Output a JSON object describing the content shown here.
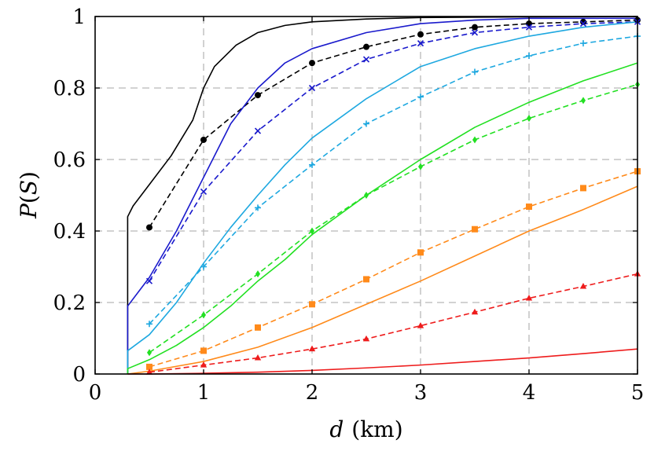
{
  "chart_data": {
    "type": "line",
    "xlabel": "d (km)",
    "xlabel_parts": {
      "var": "d",
      "unit": "(km)"
    },
    "ylabel": "P(S)",
    "ylabel_parts": {
      "p": "P",
      "open": "(",
      "s": "S",
      "close": ")"
    },
    "xlim": [
      0,
      5
    ],
    "ylim": [
      0,
      1
    ],
    "x_ticks": [
      "0",
      "1",
      "2",
      "3",
      "4",
      "5"
    ],
    "y_ticks": [
      "0",
      "0.2",
      "0.4",
      "0.6",
      "0.8",
      "1"
    ],
    "grid": true,
    "series": [
      {
        "color": "#000000",
        "style": "solid",
        "marker": "none",
        "x": [
          0.3,
          0.3,
          0.35,
          0.5,
          0.7,
          0.9,
          1.0,
          1.1,
          1.3,
          1.5,
          1.75,
          2.0,
          2.5,
          3.0,
          4.0,
          5.0
        ],
        "y": [
          0.0,
          0.44,
          0.47,
          0.53,
          0.61,
          0.71,
          0.8,
          0.86,
          0.92,
          0.955,
          0.975,
          0.985,
          0.993,
          0.997,
          0.999,
          1.0
        ]
      },
      {
        "color": "#000000",
        "style": "dashed",
        "marker": "circle",
        "x": [
          0.5,
          1.0,
          1.5,
          2.0,
          2.5,
          3.0,
          3.5,
          4.0,
          4.5,
          5.0
        ],
        "y": [
          0.41,
          0.655,
          0.78,
          0.87,
          0.915,
          0.95,
          0.97,
          0.98,
          0.985,
          0.99
        ]
      },
      {
        "color": "#1a1acc",
        "style": "solid",
        "marker": "none",
        "x": [
          0.3,
          0.3,
          0.5,
          0.75,
          1.0,
          1.25,
          1.5,
          1.75,
          2.0,
          2.5,
          3.0,
          3.5,
          4.0,
          4.5,
          5.0
        ],
        "y": [
          0.0,
          0.19,
          0.27,
          0.4,
          0.55,
          0.7,
          0.8,
          0.87,
          0.91,
          0.955,
          0.98,
          0.99,
          0.995,
          0.995,
          0.995
        ]
      },
      {
        "color": "#1a1acc",
        "style": "dashed",
        "marker": "cross",
        "x": [
          0.5,
          1.0,
          1.5,
          2.0,
          2.5,
          3.0,
          3.5,
          4.0,
          4.5,
          5.0
        ],
        "y": [
          0.26,
          0.51,
          0.68,
          0.8,
          0.88,
          0.925,
          0.955,
          0.97,
          0.98,
          0.985
        ]
      },
      {
        "color": "#1ea8e0",
        "style": "solid",
        "marker": "none",
        "x": [
          0.3,
          0.3,
          0.5,
          0.75,
          1.0,
          1.25,
          1.5,
          1.75,
          2.0,
          2.5,
          3.0,
          3.5,
          4.0,
          4.5,
          5.0
        ],
        "y": [
          0.0,
          0.065,
          0.11,
          0.2,
          0.31,
          0.41,
          0.5,
          0.585,
          0.66,
          0.77,
          0.86,
          0.91,
          0.945,
          0.97,
          0.985
        ]
      },
      {
        "color": "#1ea8e0",
        "style": "dashed",
        "marker": "plus",
        "x": [
          0.5,
          1.0,
          1.5,
          2.0,
          2.5,
          3.0,
          3.5,
          4.0,
          4.5,
          5.0
        ],
        "y": [
          0.14,
          0.3,
          0.465,
          0.585,
          0.7,
          0.775,
          0.845,
          0.89,
          0.925,
          0.945
        ]
      },
      {
        "color": "#22e022",
        "style": "solid",
        "marker": "none",
        "x": [
          0.3,
          0.3,
          0.5,
          0.75,
          1.0,
          1.25,
          1.5,
          1.75,
          2.0,
          2.5,
          3.0,
          3.5,
          4.0,
          4.5,
          5.0
        ],
        "y": [
          0.0,
          0.015,
          0.04,
          0.08,
          0.13,
          0.19,
          0.26,
          0.32,
          0.39,
          0.5,
          0.6,
          0.69,
          0.76,
          0.82,
          0.87
        ]
      },
      {
        "color": "#22e022",
        "style": "dashed",
        "marker": "diamond",
        "x": [
          0.5,
          1.0,
          1.5,
          2.0,
          2.5,
          3.0,
          3.5,
          4.0,
          4.5,
          5.0
        ],
        "y": [
          0.06,
          0.165,
          0.28,
          0.4,
          0.5,
          0.58,
          0.655,
          0.715,
          0.765,
          0.81
        ]
      },
      {
        "color": "#ff8a1a",
        "style": "solid",
        "marker": "none",
        "x": [
          0.3,
          0.5,
          1.0,
          1.5,
          2.0,
          2.5,
          3.0,
          3.5,
          4.0,
          4.5,
          5.0
        ],
        "y": [
          0.0,
          0.008,
          0.035,
          0.075,
          0.13,
          0.195,
          0.26,
          0.33,
          0.4,
          0.46,
          0.525
        ]
      },
      {
        "color": "#ff8a1a",
        "style": "dashed",
        "marker": "square",
        "x": [
          0.5,
          1.0,
          1.5,
          2.0,
          2.5,
          3.0,
          3.5,
          4.0,
          4.5,
          5.0
        ],
        "y": [
          0.02,
          0.065,
          0.13,
          0.195,
          0.265,
          0.34,
          0.405,
          0.468,
          0.52,
          0.567
        ]
      },
      {
        "color": "#ee1c1c",
        "style": "solid",
        "marker": "none",
        "x": [
          0.3,
          0.5,
          1.0,
          1.5,
          2.0,
          2.5,
          3.0,
          3.5,
          4.0,
          4.5,
          5.0
        ],
        "y": [
          0.0,
          0.0,
          0.002,
          0.005,
          0.01,
          0.017,
          0.025,
          0.035,
          0.045,
          0.057,
          0.07
        ]
      },
      {
        "color": "#ee1c1c",
        "style": "dashed",
        "marker": "triangle",
        "x": [
          0.5,
          1.0,
          1.5,
          2.0,
          2.5,
          3.0,
          3.5,
          4.0,
          4.5,
          5.0
        ],
        "y": [
          0.005,
          0.025,
          0.045,
          0.07,
          0.098,
          0.135,
          0.173,
          0.212,
          0.245,
          0.28
        ]
      }
    ]
  }
}
